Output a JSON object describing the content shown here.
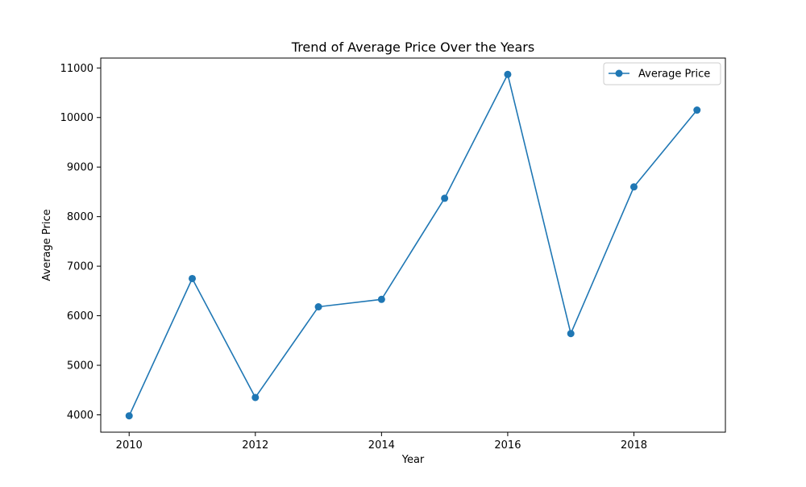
{
  "chart_data": {
    "type": "line",
    "title": "Trend of Average Price Over the Years",
    "xlabel": "Year",
    "ylabel": "Average Price",
    "x": [
      2010,
      2011,
      2012,
      2013,
      2014,
      2015,
      2016,
      2017,
      2018,
      2019
    ],
    "series": [
      {
        "name": "Average Price",
        "values": [
          3980,
          6750,
          4350,
          6180,
          6330,
          8370,
          10870,
          5640,
          8600,
          10150
        ],
        "color": "#1f77b4",
        "marker": "circle"
      }
    ],
    "xlim": [
      2009.55,
      2019.45
    ],
    "ylim": [
      3650,
      11200
    ],
    "x_ticks": [
      2010,
      2012,
      2014,
      2016,
      2018
    ],
    "x_tick_labels": [
      "2010",
      "2012",
      "2014",
      "2016",
      "2018"
    ],
    "y_ticks": [
      4000,
      5000,
      6000,
      7000,
      8000,
      9000,
      10000,
      11000
    ],
    "y_tick_labels": [
      "4000",
      "5000",
      "6000",
      "7000",
      "8000",
      "9000",
      "10000",
      "11000"
    ],
    "grid": false,
    "legend_position": "top-right"
  }
}
